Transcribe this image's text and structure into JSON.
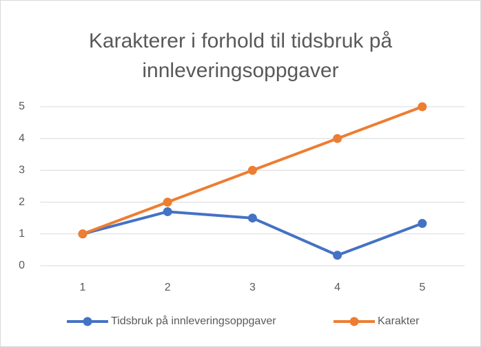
{
  "chart_data": {
    "type": "line",
    "title": "Karakterer i forhold til tidsbruk på innleveringsoppgaver",
    "categories": [
      1,
      2,
      3,
      4,
      5
    ],
    "series": [
      {
        "name": "Tidsbruk på innleveringsoppgaver",
        "color": "#4472c4",
        "values": [
          1,
          1.7,
          1.5,
          0.33,
          1.33
        ]
      },
      {
        "name": "Karakter",
        "color": "#ed7d31",
        "values": [
          1,
          2,
          3,
          4,
          5
        ]
      }
    ],
    "ylim": [
      0,
      5
    ],
    "yticks": [
      0,
      1,
      2,
      3,
      4,
      5
    ],
    "grid": true,
    "legend": "bottom"
  }
}
